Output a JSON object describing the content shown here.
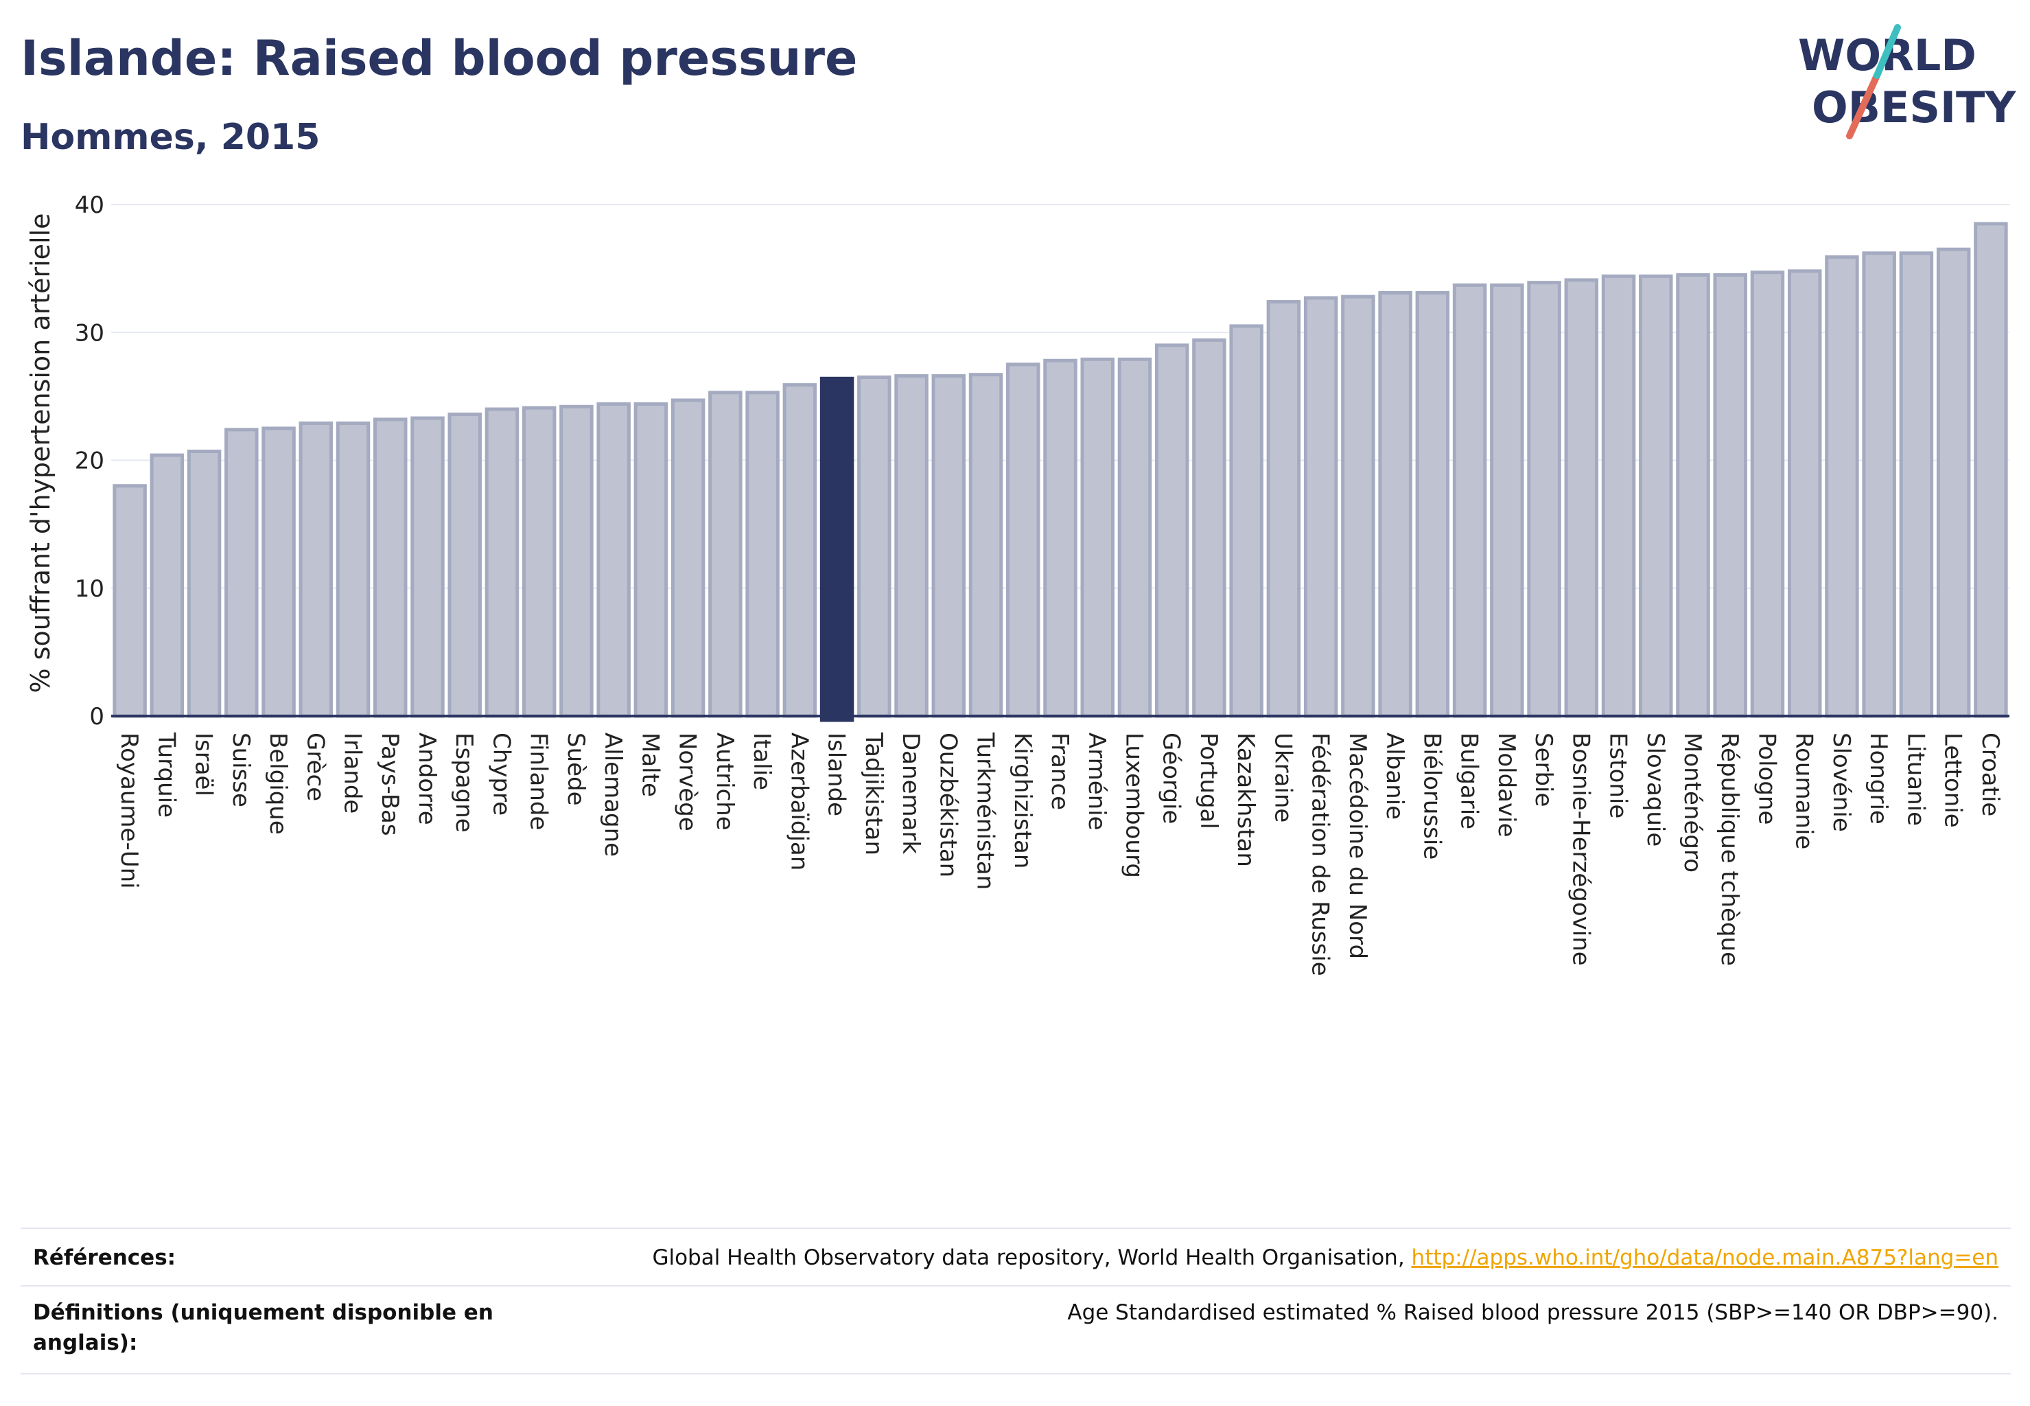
{
  "header": {
    "title": "Islande: Raised blood pressure",
    "subtitle": "Hommes, 2015"
  },
  "logo": {
    "line1": "WORLD",
    "line2": "OBESITY"
  },
  "chart_data": {
    "type": "bar",
    "ylabel": "% souffrant d'hypertension artérielle",
    "xlabel": "",
    "ylim": [
      0,
      40
    ],
    "yticks": [
      0,
      10,
      20,
      30,
      40
    ],
    "grid": true,
    "highlight": "Islande",
    "colors": {
      "bar": "#bfc3d1",
      "bar_edge": "#a4aac0",
      "highlight": "#2a3561"
    },
    "categories": [
      "Royaume-Uni",
      "Turquie",
      "Israël",
      "Suisse",
      "Belgique",
      "Grèce",
      "Irlande",
      "Pays-Bas",
      "Andorre",
      "Espagne",
      "Chypre",
      "Finlande",
      "Suède",
      "Allemagne",
      "Malte",
      "Norvège",
      "Autriche",
      "Italie",
      "Azerbaïdjan",
      "Islande",
      "Tadjikistan",
      "Danemark",
      "Ouzbékistan",
      "Turkménistan",
      "Kirghizistan",
      "France",
      "Arménie",
      "Luxembourg",
      "Géorgie",
      "Portugal",
      "Kazakhstan",
      "Ukraine",
      "Fédération de Russie",
      "Macédoine du Nord",
      "Albanie",
      "Biélorussie",
      "Bulgarie",
      "Moldavie",
      "Serbie",
      "Bosnie-Herzégovine",
      "Estonie",
      "Slovaquie",
      "Monténégro",
      "République tchèque",
      "Pologne",
      "Roumanie",
      "Slovénie",
      "Hongrie",
      "Lituanie",
      "Lettonie",
      "Croatie"
    ],
    "values": [
      18.0,
      20.4,
      20.7,
      22.4,
      22.5,
      22.9,
      22.9,
      23.2,
      23.3,
      23.6,
      24.0,
      24.1,
      24.2,
      24.4,
      24.4,
      24.7,
      25.3,
      25.3,
      25.9,
      26.4,
      26.5,
      26.6,
      26.6,
      26.7,
      27.5,
      27.8,
      27.9,
      27.9,
      29.0,
      29.4,
      30.5,
      32.4,
      32.7,
      32.8,
      33.1,
      33.1,
      33.7,
      33.7,
      33.9,
      34.1,
      34.4,
      34.4,
      34.5,
      34.5,
      34.7,
      34.8,
      35.9,
      36.2,
      36.2,
      36.5,
      38.5
    ]
  },
  "footer": {
    "references_label": "Références:",
    "references_text": "Global Health Observatory data repository, World Health Organisation, ",
    "references_link": "http://apps.who.int/gho/data/node.main.A875?lang=en",
    "definitions_label": "Définitions (uniquement disponible en anglais):",
    "definitions_text": "Age Standardised estimated % Raised blood pressure 2015 (SBP>=140 OR DBP>=90)."
  }
}
